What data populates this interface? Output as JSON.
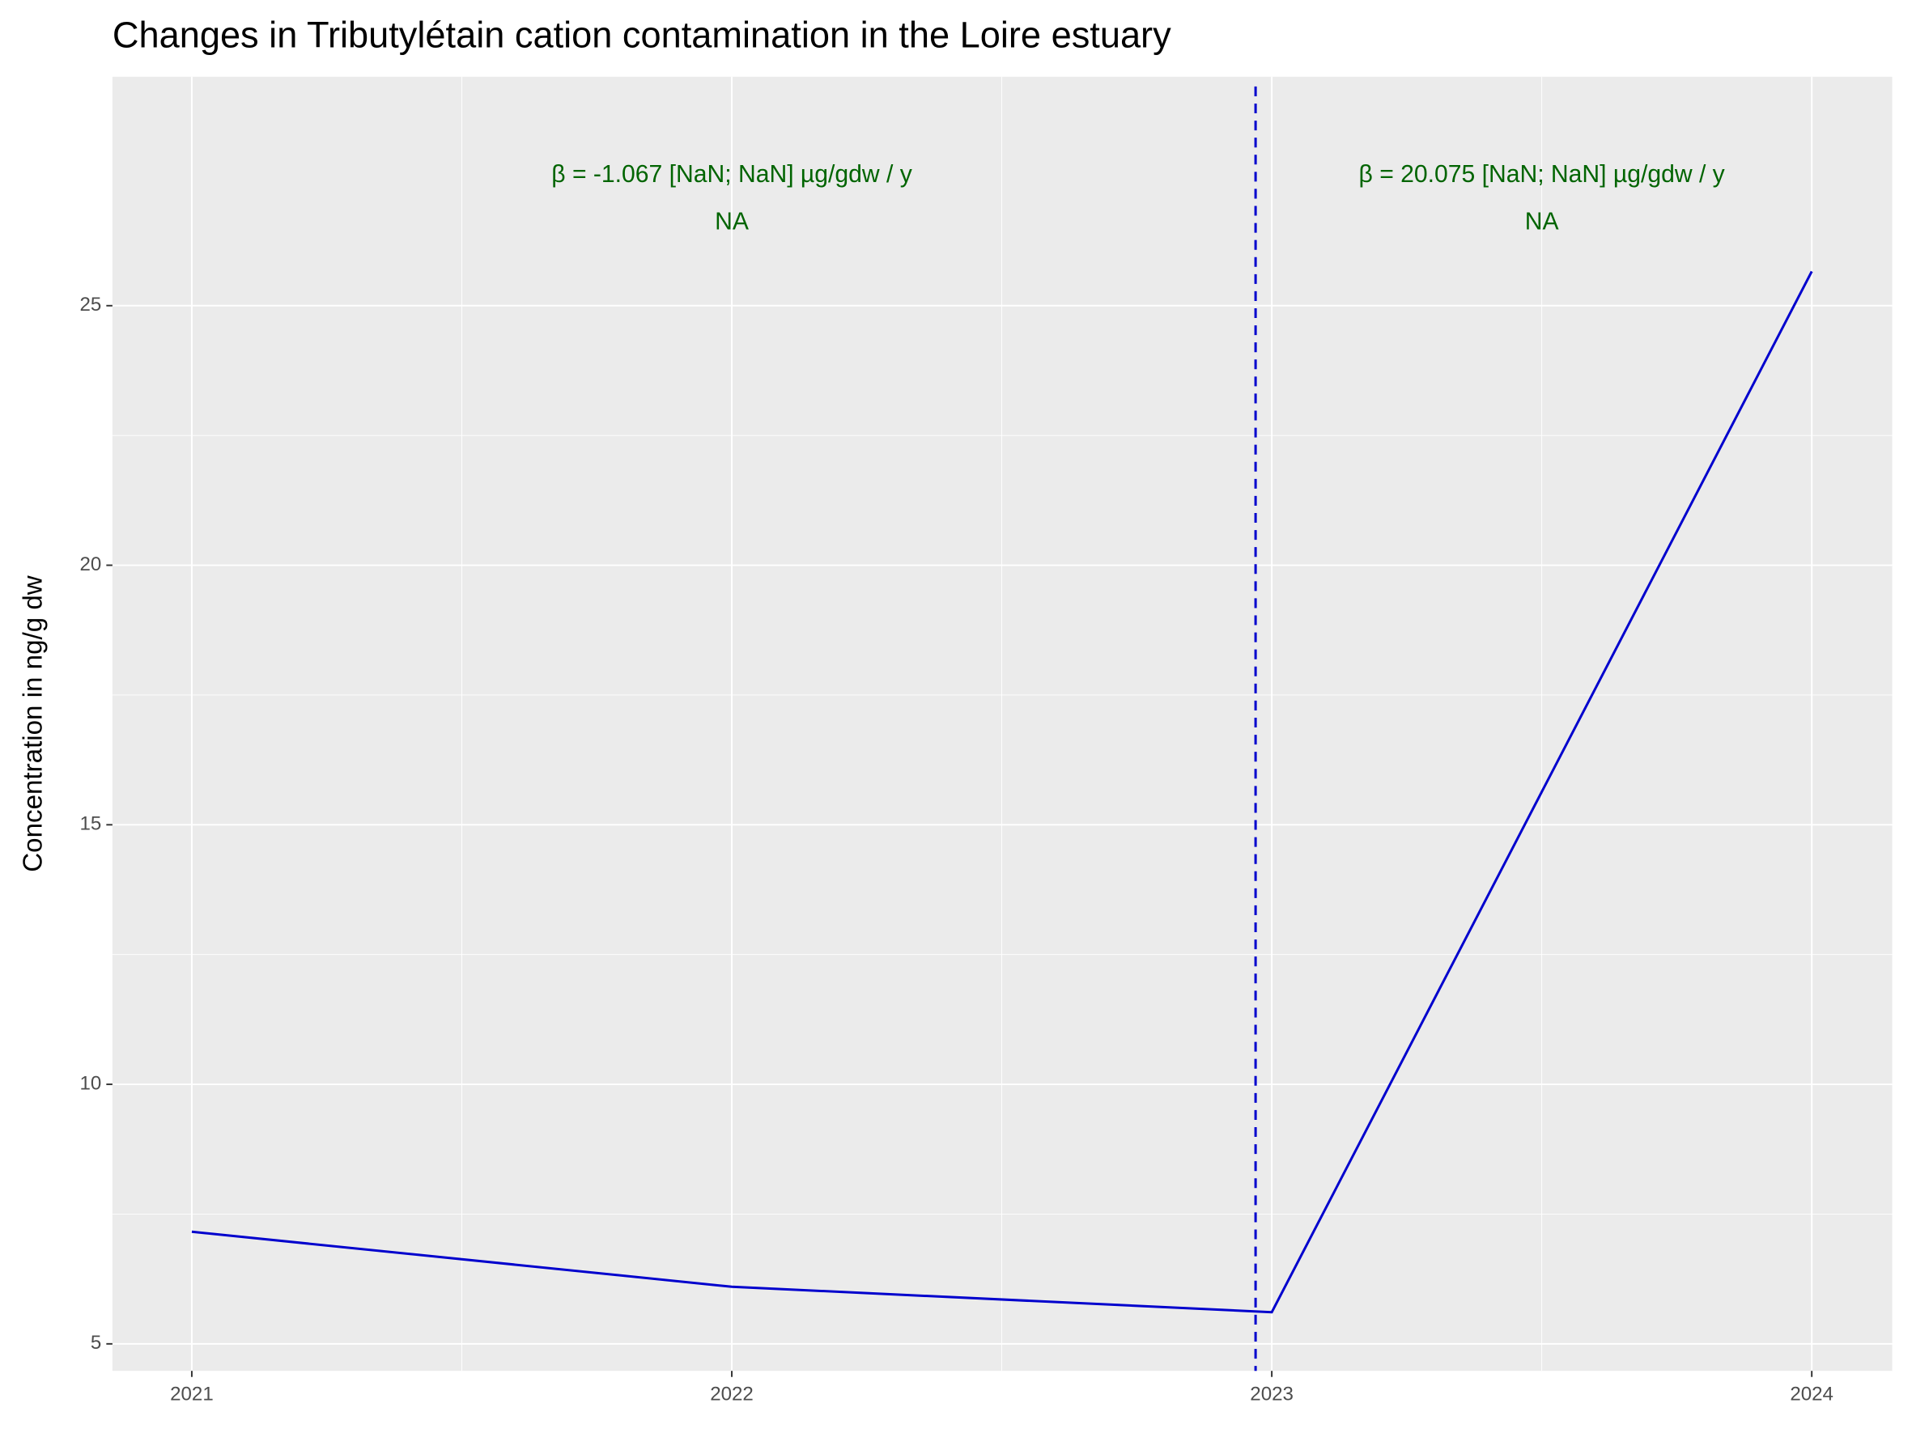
{
  "chart_data": {
    "type": "line",
    "title": "Changes in Tributylétain cation contamination in the Loire estuary",
    "y_label": "Concentration in ng/g dw",
    "x": [
      2021,
      2022,
      2023,
      2024
    ],
    "series": [
      {
        "name": "Tributylétain cation",
        "color": "#0000cd",
        "values": [
          7.16,
          6.1,
          5.61,
          25.66
        ]
      }
    ],
    "xlim": [
      2020.853,
      2024.149
    ],
    "xticks": [
      2021,
      2022,
      2023,
      2024
    ],
    "ylim": [
      4.48,
      29.41
    ],
    "yticks": [
      5,
      10,
      15,
      20,
      25
    ],
    "grid": true,
    "vline": 2022.97,
    "annotations": [
      {
        "text": "β = -1.067 [NaN; NaN] µg/gdw / y",
        "subtext": "NA",
        "color": "#006400"
      },
      {
        "text": "β = 20.075 [NaN; NaN] µg/gdw / y",
        "subtext": "NA",
        "color": "#006400"
      }
    ]
  }
}
